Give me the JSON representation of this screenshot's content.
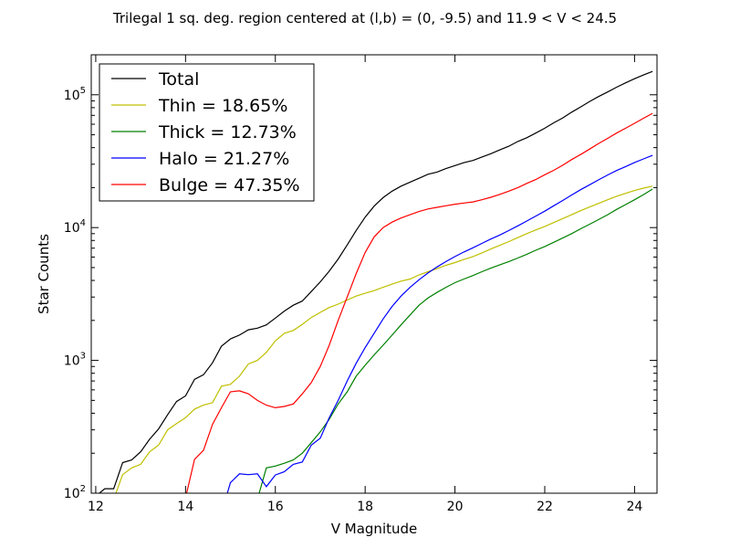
{
  "chart_data": {
    "type": "line",
    "title": "Trilegal 1 sq. deg. region centered at (l,b) = (0, -9.5) and 11.9 < V < 24.5",
    "xlabel": "V Magnitude",
    "ylabel": "Star Counts",
    "xlim": [
      11.9,
      24.5
    ],
    "ylim": [
      100,
      200000
    ],
    "yscale": "log",
    "x_ticks": [
      12,
      14,
      16,
      18,
      20,
      22,
      24
    ],
    "y_ticks": [
      {
        "value": 100,
        "base": "10",
        "exp": "2"
      },
      {
        "value": 1000,
        "base": "10",
        "exp": "3"
      },
      {
        "value": 10000,
        "base": "10",
        "exp": "4"
      },
      {
        "value": 100000,
        "base": "10",
        "exp": "5"
      }
    ],
    "grid": false,
    "legend_position": "top-left",
    "series": [
      {
        "name": "Total",
        "color": "#000000",
        "points": [
          [
            12.0,
            95
          ],
          [
            12.2,
            108
          ],
          [
            12.4,
            108
          ],
          [
            12.6,
            170
          ],
          [
            12.8,
            178
          ],
          [
            13.0,
            205
          ],
          [
            13.2,
            255
          ],
          [
            13.4,
            305
          ],
          [
            13.6,
            390
          ],
          [
            13.8,
            490
          ],
          [
            14.0,
            540
          ],
          [
            14.2,
            720
          ],
          [
            14.4,
            780
          ],
          [
            14.6,
            960
          ],
          [
            14.8,
            1280
          ],
          [
            15.0,
            1450
          ],
          [
            15.2,
            1550
          ],
          [
            15.4,
            1700
          ],
          [
            15.6,
            1750
          ],
          [
            15.8,
            1850
          ],
          [
            16.0,
            2080
          ],
          [
            16.2,
            2350
          ],
          [
            16.4,
            2600
          ],
          [
            16.6,
            2800
          ],
          [
            16.8,
            3300
          ],
          [
            17.0,
            3900
          ],
          [
            17.2,
            4700
          ],
          [
            17.4,
            5800
          ],
          [
            17.6,
            7400
          ],
          [
            17.8,
            9500
          ],
          [
            18.0,
            12000
          ],
          [
            18.2,
            14500
          ],
          [
            18.4,
            16800
          ],
          [
            18.6,
            18800
          ],
          [
            18.8,
            20500
          ],
          [
            19.0,
            22000
          ],
          [
            19.2,
            23500
          ],
          [
            19.4,
            25200
          ],
          [
            19.6,
            26200
          ],
          [
            19.8,
            27800
          ],
          [
            20.0,
            29300
          ],
          [
            20.2,
            30800
          ],
          [
            20.4,
            32000
          ],
          [
            20.6,
            34000
          ],
          [
            20.8,
            36000
          ],
          [
            21.0,
            38500
          ],
          [
            21.2,
            41000
          ],
          [
            21.4,
            44500
          ],
          [
            21.6,
            47500
          ],
          [
            21.8,
            51500
          ],
          [
            22.0,
            56000
          ],
          [
            22.2,
            61500
          ],
          [
            22.4,
            67000
          ],
          [
            22.6,
            74000
          ],
          [
            22.8,
            81000
          ],
          [
            23.0,
            89000
          ],
          [
            23.2,
            97000
          ],
          [
            23.4,
            105000
          ],
          [
            23.6,
            114000
          ],
          [
            23.8,
            123000
          ],
          [
            24.0,
            132000
          ],
          [
            24.2,
            141000
          ],
          [
            24.4,
            150000
          ]
        ]
      },
      {
        "name": "Thin = 18.65%",
        "color": "#bfbf00",
        "points": [
          [
            12.4,
            90
          ],
          [
            12.6,
            138
          ],
          [
            12.8,
            155
          ],
          [
            13.0,
            165
          ],
          [
            13.2,
            205
          ],
          [
            13.4,
            230
          ],
          [
            13.6,
            300
          ],
          [
            13.8,
            335
          ],
          [
            14.0,
            370
          ],
          [
            14.2,
            430
          ],
          [
            14.4,
            460
          ],
          [
            14.6,
            480
          ],
          [
            14.8,
            640
          ],
          [
            15.0,
            660
          ],
          [
            15.2,
            760
          ],
          [
            15.4,
            940
          ],
          [
            15.6,
            1000
          ],
          [
            15.8,
            1150
          ],
          [
            16.0,
            1400
          ],
          [
            16.2,
            1600
          ],
          [
            16.4,
            1680
          ],
          [
            16.6,
            1870
          ],
          [
            16.8,
            2100
          ],
          [
            17.0,
            2300
          ],
          [
            17.2,
            2500
          ],
          [
            17.4,
            2650
          ],
          [
            17.6,
            2850
          ],
          [
            17.8,
            3050
          ],
          [
            18.0,
            3200
          ],
          [
            18.2,
            3350
          ],
          [
            18.4,
            3550
          ],
          [
            18.6,
            3750
          ],
          [
            18.8,
            3950
          ],
          [
            19.0,
            4100
          ],
          [
            19.2,
            4400
          ],
          [
            19.4,
            4650
          ],
          [
            19.6,
            4900
          ],
          [
            19.8,
            5200
          ],
          [
            20.0,
            5450
          ],
          [
            20.2,
            5750
          ],
          [
            20.4,
            6050
          ],
          [
            20.6,
            6450
          ],
          [
            20.8,
            6900
          ],
          [
            21.0,
            7350
          ],
          [
            21.2,
            7850
          ],
          [
            21.4,
            8400
          ],
          [
            21.6,
            9000
          ],
          [
            21.8,
            9600
          ],
          [
            22.0,
            10200
          ],
          [
            22.2,
            10900
          ],
          [
            22.4,
            11700
          ],
          [
            22.6,
            12500
          ],
          [
            22.8,
            13400
          ],
          [
            23.0,
            14300
          ],
          [
            23.2,
            15200
          ],
          [
            23.4,
            16200
          ],
          [
            23.6,
            17200
          ],
          [
            23.8,
            18100
          ],
          [
            24.0,
            19000
          ],
          [
            24.2,
            19800
          ],
          [
            24.4,
            20500
          ]
        ]
      },
      {
        "name": "Thick = 12.73%",
        "color": "#008000",
        "points": [
          [
            15.6,
            90
          ],
          [
            15.8,
            155
          ],
          [
            16.0,
            160
          ],
          [
            16.2,
            168
          ],
          [
            16.4,
            178
          ],
          [
            16.6,
            200
          ],
          [
            16.8,
            240
          ],
          [
            17.0,
            290
          ],
          [
            17.2,
            360
          ],
          [
            17.4,
            470
          ],
          [
            17.6,
            580
          ],
          [
            17.8,
            760
          ],
          [
            18.0,
            920
          ],
          [
            18.2,
            1100
          ],
          [
            18.4,
            1300
          ],
          [
            18.6,
            1550
          ],
          [
            18.8,
            1850
          ],
          [
            19.0,
            2200
          ],
          [
            19.2,
            2600
          ],
          [
            19.4,
            2950
          ],
          [
            19.6,
            3250
          ],
          [
            19.8,
            3550
          ],
          [
            20.0,
            3850
          ],
          [
            20.2,
            4100
          ],
          [
            20.4,
            4350
          ],
          [
            20.6,
            4650
          ],
          [
            20.8,
            4950
          ],
          [
            21.0,
            5250
          ],
          [
            21.2,
            5550
          ],
          [
            21.4,
            5900
          ],
          [
            21.6,
            6300
          ],
          [
            21.8,
            6750
          ],
          [
            22.0,
            7200
          ],
          [
            22.2,
            7750
          ],
          [
            22.4,
            8350
          ],
          [
            22.6,
            9000
          ],
          [
            22.8,
            9800
          ],
          [
            23.0,
            10600
          ],
          [
            23.2,
            11500
          ],
          [
            23.4,
            12500
          ],
          [
            23.6,
            13700
          ],
          [
            23.8,
            14900
          ],
          [
            24.0,
            16200
          ],
          [
            24.2,
            17700
          ],
          [
            24.4,
            19500
          ]
        ]
      },
      {
        "name": "Halo = 21.27%",
        "color": "#0000ff",
        "points": [
          [
            14.9,
            92
          ],
          [
            15.0,
            120
          ],
          [
            15.2,
            140
          ],
          [
            15.4,
            138
          ],
          [
            15.6,
            140
          ],
          [
            15.8,
            112
          ],
          [
            16.0,
            137
          ],
          [
            16.2,
            145
          ],
          [
            16.4,
            165
          ],
          [
            16.6,
            172
          ],
          [
            16.8,
            230
          ],
          [
            17.0,
            260
          ],
          [
            17.2,
            370
          ],
          [
            17.4,
            500
          ],
          [
            17.6,
            700
          ],
          [
            17.8,
            950
          ],
          [
            18.0,
            1250
          ],
          [
            18.2,
            1600
          ],
          [
            18.4,
            2050
          ],
          [
            18.6,
            2550
          ],
          [
            18.8,
            3050
          ],
          [
            19.0,
            3550
          ],
          [
            19.2,
            4050
          ],
          [
            19.4,
            4550
          ],
          [
            19.6,
            5050
          ],
          [
            19.8,
            5550
          ],
          [
            20.0,
            6050
          ],
          [
            20.2,
            6550
          ],
          [
            20.4,
            7050
          ],
          [
            20.6,
            7600
          ],
          [
            20.8,
            8200
          ],
          [
            21.0,
            8800
          ],
          [
            21.2,
            9500
          ],
          [
            21.4,
            10300
          ],
          [
            21.6,
            11200
          ],
          [
            21.8,
            12200
          ],
          [
            22.0,
            13300
          ],
          [
            22.2,
            14600
          ],
          [
            22.4,
            16000
          ],
          [
            22.6,
            17600
          ],
          [
            22.8,
            19300
          ],
          [
            23.0,
            21000
          ],
          [
            23.2,
            22900
          ],
          [
            23.4,
            24900
          ],
          [
            23.6,
            26900
          ],
          [
            23.8,
            28800
          ],
          [
            24.0,
            30900
          ],
          [
            24.2,
            32900
          ],
          [
            24.4,
            35000
          ]
        ]
      },
      {
        "name": "Bulge = 47.35%",
        "color": "#ff0000",
        "points": [
          [
            14.0,
            92
          ],
          [
            14.2,
            180
          ],
          [
            14.4,
            210
          ],
          [
            14.6,
            330
          ],
          [
            14.8,
            440
          ],
          [
            15.0,
            580
          ],
          [
            15.2,
            590
          ],
          [
            15.4,
            560
          ],
          [
            15.6,
            500
          ],
          [
            15.8,
            460
          ],
          [
            16.0,
            440
          ],
          [
            16.2,
            450
          ],
          [
            16.4,
            470
          ],
          [
            16.6,
            560
          ],
          [
            16.8,
            680
          ],
          [
            17.0,
            900
          ],
          [
            17.2,
            1300
          ],
          [
            17.4,
            2000
          ],
          [
            17.6,
            3000
          ],
          [
            17.8,
            4500
          ],
          [
            18.0,
            6500
          ],
          [
            18.2,
            8500
          ],
          [
            18.4,
            10000
          ],
          [
            18.6,
            11000
          ],
          [
            18.8,
            11800
          ],
          [
            19.0,
            12500
          ],
          [
            19.2,
            13200
          ],
          [
            19.4,
            13800
          ],
          [
            19.6,
            14200
          ],
          [
            19.8,
            14600
          ],
          [
            20.0,
            15000
          ],
          [
            20.2,
            15300
          ],
          [
            20.4,
            15600
          ],
          [
            20.6,
            16200
          ],
          [
            20.8,
            16900
          ],
          [
            21.0,
            17800
          ],
          [
            21.2,
            18800
          ],
          [
            21.4,
            20000
          ],
          [
            21.6,
            21500
          ],
          [
            21.8,
            23000
          ],
          [
            22.0,
            25000
          ],
          [
            22.2,
            27000
          ],
          [
            22.4,
            29500
          ],
          [
            22.6,
            32500
          ],
          [
            22.8,
            35500
          ],
          [
            23.0,
            39000
          ],
          [
            23.2,
            43000
          ],
          [
            23.4,
            47000
          ],
          [
            23.6,
            51500
          ],
          [
            23.8,
            56000
          ],
          [
            24.0,
            61000
          ],
          [
            24.2,
            66500
          ],
          [
            24.4,
            72500
          ]
        ]
      }
    ]
  }
}
